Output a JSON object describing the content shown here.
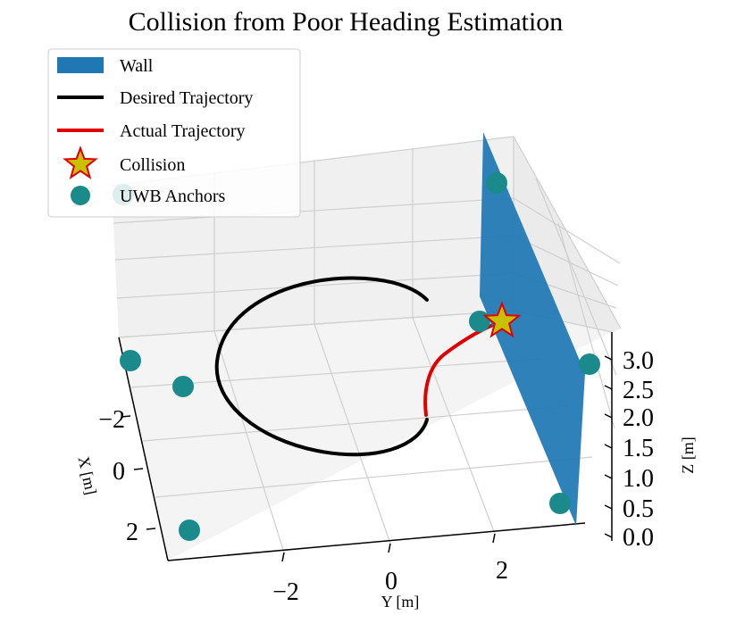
{
  "chart_data": {
    "type": "3d-line",
    "title": "Collision from Poor Heading Estimation",
    "xlabel": "X [m]",
    "ylabel": "Y [m]",
    "zlabel": "Z [m]",
    "xticks": [
      "−2",
      "0",
      "2"
    ],
    "yticks": [
      "−2",
      "0",
      "2"
    ],
    "zticks": [
      "0.0",
      "0.5",
      "1.0",
      "1.5",
      "2.0",
      "2.5",
      "3.0"
    ],
    "xlim": [
      -3,
      3
    ],
    "ylim": [
      -3,
      3
    ],
    "zlim": [
      0,
      3
    ],
    "grid": true,
    "legend_position": "top-left",
    "legend": [
      {
        "label": "Wall",
        "color": "#1f77b4",
        "kind": "patch"
      },
      {
        "label": "Desired Trajectory",
        "color": "#000000",
        "kind": "line"
      },
      {
        "label": "Actual Trajectory",
        "color": "#e00000",
        "kind": "line"
      },
      {
        "label": "Collision",
        "color": "#c8c000",
        "kind": "star"
      },
      {
        "label": "UWB Anchors",
        "color": "#1a8a8a",
        "kind": "dot"
      }
    ],
    "series": [
      {
        "name": "Desired Trajectory",
        "kind": "circle",
        "center_x": -0.5,
        "center_y": -0.3,
        "radius": 1.5,
        "z": 1.0
      },
      {
        "name": "Actual Trajectory",
        "x": [
          0.9,
          0.3,
          -0.3,
          -0.9,
          -1.2
        ],
        "y": [
          0.85,
          1.1,
          1.45,
          1.95,
          2.3
        ],
        "z": [
          1.0,
          1.0,
          1.0,
          1.0,
          1.0
        ]
      },
      {
        "name": "UWB Anchors",
        "points": [
          [
            -3,
            -3,
            1.5
          ],
          [
            -2,
            -2.8,
            1.5
          ],
          [
            3,
            -2.8,
            0.5
          ],
          [
            -3.5,
            2.5,
            2.8
          ],
          [
            -0.8,
            2.3,
            1.0
          ],
          [
            0.5,
            3.4,
            2.0
          ],
          [
            3,
            2.5,
            0.5
          ]
        ]
      },
      {
        "name": "Collision",
        "point": [
          -1.3,
          2.3,
          1.0
        ]
      }
    ],
    "wall": {
      "y": 2.6,
      "x_range": [
        -3.5,
        3.2
      ],
      "z_range": [
        0,
        3
      ]
    }
  }
}
